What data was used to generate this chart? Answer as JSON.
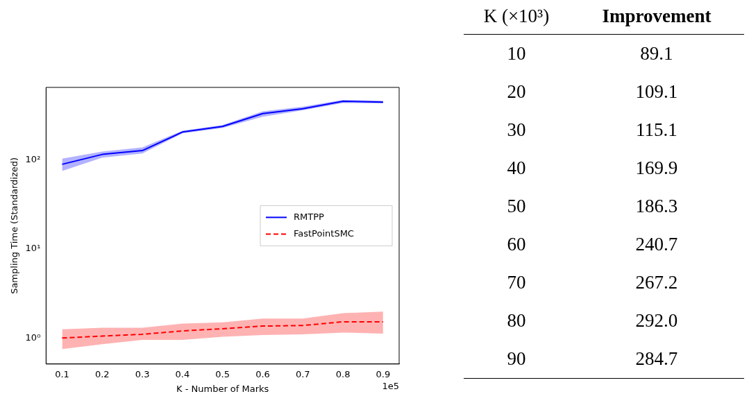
{
  "chart_data": [
    {
      "type": "line",
      "xlabel": "K - Number of Marks",
      "ylabel": "Sampling Time (Standardized)",
      "x": [
        0.1,
        0.2,
        0.3,
        0.4,
        0.5,
        0.6,
        0.7,
        0.8,
        0.9
      ],
      "series": [
        {
          "name": "RMTPP",
          "color": "#0000ff",
          "line_style": "solid",
          "values": [
            89,
            115,
            127,
            205,
            237,
            330,
            375,
            455,
            445
          ],
          "lower": [
            75,
            106,
            118,
            198,
            228,
            305,
            360,
            435,
            430
          ],
          "upper": [
            103,
            124,
            138,
            212,
            246,
            350,
            395,
            470,
            460
          ]
        },
        {
          "name": "FastPointSMC",
          "color": "#ff0000",
          "line_style": "dashed",
          "values": [
            1.0,
            1.05,
            1.1,
            1.2,
            1.27,
            1.36,
            1.38,
            1.52,
            1.52
          ],
          "lower": [
            0.75,
            0.85,
            0.95,
            0.95,
            1.03,
            1.08,
            1.1,
            1.15,
            1.12
          ],
          "upper": [
            1.25,
            1.3,
            1.3,
            1.45,
            1.5,
            1.65,
            1.65,
            1.9,
            1.98
          ]
        }
      ],
      "log": "y",
      "xlim": [
        0.06,
        0.94
      ],
      "xticks": [
        0.1,
        0.2,
        0.3,
        0.4,
        0.5,
        0.6,
        0.7,
        0.8,
        0.9
      ],
      "ylim": [
        0.51,
        650
      ],
      "yticks": [
        {
          "value": 1,
          "label": "10⁰"
        },
        {
          "value": 10,
          "label": "10¹"
        },
        {
          "value": 100,
          "label": "10²"
        }
      ],
      "grid": false,
      "legend": "right",
      "marker": "none",
      "annotations": [
        "1e5"
      ]
    },
    {
      "type": "heatmap",
      "ylabel": "K (×10³)",
      "categories": [
        "Improvement"
      ],
      "y_categories": [
        "10",
        "20",
        "30",
        "40",
        "50",
        "60",
        "70",
        "80",
        "90"
      ],
      "cells": [
        [
          89.1
        ],
        [
          109.1
        ],
        [
          115.1
        ],
        [
          169.9
        ],
        [
          186.3
        ],
        [
          240.7
        ],
        [
          267.2
        ],
        [
          292.0
        ],
        [
          284.7
        ]
      ],
      "cell_labels": [
        [
          "89.1"
        ],
        [
          "109.1"
        ],
        [
          "115.1"
        ],
        [
          "169.9"
        ],
        [
          "186.3"
        ],
        [
          "240.7"
        ],
        [
          "267.2"
        ],
        [
          "292.0"
        ],
        [
          "284.7"
        ]
      ]
    }
  ]
}
